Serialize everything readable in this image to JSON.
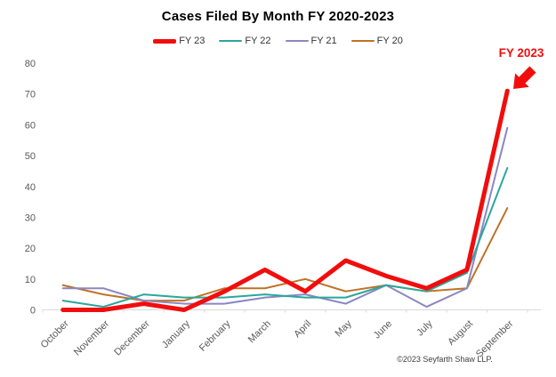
{
  "chart_data": {
    "type": "line",
    "title": "Cases Filed By Month FY 2020-2023",
    "categories": [
      "October",
      "November",
      "December",
      "January",
      "February",
      "March",
      "April",
      "May",
      "June",
      "July",
      "August",
      "September"
    ],
    "series": [
      {
        "name": "FY 23",
        "color": "#f20d0d",
        "stroke_width": 5,
        "values": [
          0,
          0,
          2,
          0,
          6,
          13,
          6,
          16,
          11,
          7,
          13,
          71
        ]
      },
      {
        "name": "FY 22",
        "color": "#2aa79b",
        "stroke_width": 2,
        "values": [
          3,
          1,
          5,
          4,
          4,
          5,
          4,
          4,
          8,
          6,
          12,
          46
        ]
      },
      {
        "name": "FY 21",
        "color": "#8a87c3",
        "stroke_width": 2,
        "values": [
          7,
          7,
          3,
          2,
          2,
          4,
          5,
          2,
          8,
          1,
          7,
          59
        ]
      },
      {
        "name": "FY 20",
        "color": "#bf7226",
        "stroke_width": 2,
        "values": [
          8,
          5,
          3,
          3,
          7,
          7,
          10,
          6,
          8,
          6,
          7,
          33
        ]
      }
    ],
    "xlabel": "",
    "ylabel": "",
    "ylim": [
      0,
      80
    ],
    "ytick_step": 10,
    "yticks": [
      0,
      10,
      20,
      30,
      40,
      50,
      60,
      70,
      80
    ],
    "grid": false,
    "legend_position": "top",
    "annotation": {
      "text": "FY 2023",
      "color": "#f20d0d"
    },
    "footer": "©2023 Seyfarth Shaw LLP.",
    "axis_color": "#d9d9d9",
    "tick_label_color": "#595959"
  }
}
